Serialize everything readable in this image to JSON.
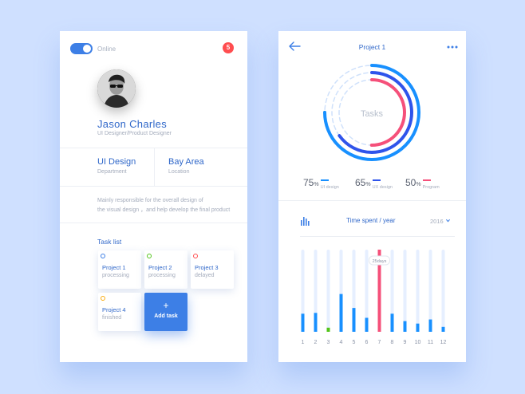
{
  "profile": {
    "status": "Online",
    "notification_count": "5",
    "name": "Jason  Charles",
    "title": "UI Designer/Product Designer",
    "department_value": "UI Design",
    "department_label": "Department",
    "location_value": "Bay Area",
    "location_label": "Location",
    "description_line1": "Mainly responsible for the overall design of",
    "description_line2": "the visual design ，and help develop the final product"
  },
  "tasks": {
    "heading": "Task list",
    "items": [
      {
        "name": "Project 1",
        "status": "processing",
        "dot_color": "#3d7fe6"
      },
      {
        "name": "Project 2",
        "status": "processing",
        "dot_color": "#52c41a"
      },
      {
        "name": "Project 3",
        "status": "delayed",
        "dot_color": "#ff4d4f"
      },
      {
        "name": "Project 4",
        "status": "finished",
        "dot_color": "#faad14"
      }
    ],
    "add_label": "Add task",
    "add_symbol": "+"
  },
  "project": {
    "title": "Project 1",
    "center_label": "Tasks",
    "percent_sign": "%",
    "stats": [
      {
        "value": "75",
        "label": "UI design",
        "color": "#1890ff"
      },
      {
        "value": "65",
        "label": "UX design",
        "color": "#2f54eb"
      },
      {
        "value": "50",
        "label": "Program",
        "color": "#f5507a"
      }
    ]
  },
  "time_chart": {
    "title": "Time spent / year",
    "year": "2016"
  },
  "chart_data": {
    "type": "bar",
    "categories": [
      "1",
      "2",
      "3",
      "4",
      "5",
      "6",
      "7",
      "8",
      "9",
      "10",
      "11",
      "12"
    ],
    "values": [
      22,
      23,
      5,
      46,
      29,
      17,
      100,
      22,
      13,
      10,
      15,
      6
    ],
    "ylim": [
      0,
      100
    ],
    "highlight_index": 6,
    "annotation": "25days",
    "bar_color": "#1890ff",
    "highlight_color": "#f5507a",
    "low_color": "#52c41a",
    "track_color": "#e6efff"
  },
  "icons": {
    "back": "back-arrow-icon",
    "more": "more-icon",
    "chart": "bar-chart-icon",
    "dropdown": "chevron-down-icon"
  }
}
